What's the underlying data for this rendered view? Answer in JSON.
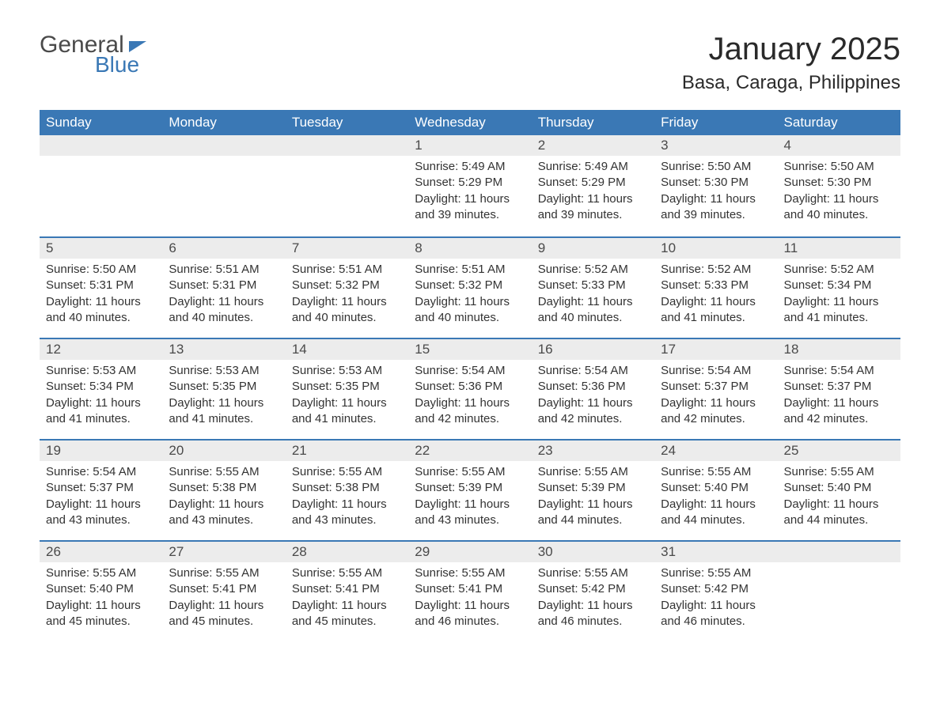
{
  "logo": {
    "word1": "General",
    "word2": "Blue"
  },
  "title": "January 2025",
  "location": "Basa, Caraga, Philippines",
  "day_headers": [
    "Sunday",
    "Monday",
    "Tuesday",
    "Wednesday",
    "Thursday",
    "Friday",
    "Saturday"
  ],
  "colors": {
    "header_bg": "#3a78b5",
    "header_text": "#ffffff",
    "stripe_bg": "#ececec",
    "stripe_border": "#3a78b5",
    "body_text": "#333333",
    "logo_gray": "#4a4a4a",
    "logo_blue": "#3a78b5",
    "background": "#ffffff"
  },
  "typography": {
    "font_family": "Arial, Helvetica, sans-serif",
    "month_title_size_pt": 30,
    "location_size_pt": 18,
    "day_header_size_pt": 13,
    "day_num_size_pt": 13,
    "body_size_pt": 11
  },
  "weeks": [
    [
      null,
      null,
      null,
      {
        "num": "1",
        "sunrise": "Sunrise: 5:49 AM",
        "sunset": "Sunset: 5:29 PM",
        "daylight": "Daylight: 11 hours and 39 minutes."
      },
      {
        "num": "2",
        "sunrise": "Sunrise: 5:49 AM",
        "sunset": "Sunset: 5:29 PM",
        "daylight": "Daylight: 11 hours and 39 minutes."
      },
      {
        "num": "3",
        "sunrise": "Sunrise: 5:50 AM",
        "sunset": "Sunset: 5:30 PM",
        "daylight": "Daylight: 11 hours and 39 minutes."
      },
      {
        "num": "4",
        "sunrise": "Sunrise: 5:50 AM",
        "sunset": "Sunset: 5:30 PM",
        "daylight": "Daylight: 11 hours and 40 minutes."
      }
    ],
    [
      {
        "num": "5",
        "sunrise": "Sunrise: 5:50 AM",
        "sunset": "Sunset: 5:31 PM",
        "daylight": "Daylight: 11 hours and 40 minutes."
      },
      {
        "num": "6",
        "sunrise": "Sunrise: 5:51 AM",
        "sunset": "Sunset: 5:31 PM",
        "daylight": "Daylight: 11 hours and 40 minutes."
      },
      {
        "num": "7",
        "sunrise": "Sunrise: 5:51 AM",
        "sunset": "Sunset: 5:32 PM",
        "daylight": "Daylight: 11 hours and 40 minutes."
      },
      {
        "num": "8",
        "sunrise": "Sunrise: 5:51 AM",
        "sunset": "Sunset: 5:32 PM",
        "daylight": "Daylight: 11 hours and 40 minutes."
      },
      {
        "num": "9",
        "sunrise": "Sunrise: 5:52 AM",
        "sunset": "Sunset: 5:33 PM",
        "daylight": "Daylight: 11 hours and 40 minutes."
      },
      {
        "num": "10",
        "sunrise": "Sunrise: 5:52 AM",
        "sunset": "Sunset: 5:33 PM",
        "daylight": "Daylight: 11 hours and 41 minutes."
      },
      {
        "num": "11",
        "sunrise": "Sunrise: 5:52 AM",
        "sunset": "Sunset: 5:34 PM",
        "daylight": "Daylight: 11 hours and 41 minutes."
      }
    ],
    [
      {
        "num": "12",
        "sunrise": "Sunrise: 5:53 AM",
        "sunset": "Sunset: 5:34 PM",
        "daylight": "Daylight: 11 hours and 41 minutes."
      },
      {
        "num": "13",
        "sunrise": "Sunrise: 5:53 AM",
        "sunset": "Sunset: 5:35 PM",
        "daylight": "Daylight: 11 hours and 41 minutes."
      },
      {
        "num": "14",
        "sunrise": "Sunrise: 5:53 AM",
        "sunset": "Sunset: 5:35 PM",
        "daylight": "Daylight: 11 hours and 41 minutes."
      },
      {
        "num": "15",
        "sunrise": "Sunrise: 5:54 AM",
        "sunset": "Sunset: 5:36 PM",
        "daylight": "Daylight: 11 hours and 42 minutes."
      },
      {
        "num": "16",
        "sunrise": "Sunrise: 5:54 AM",
        "sunset": "Sunset: 5:36 PM",
        "daylight": "Daylight: 11 hours and 42 minutes."
      },
      {
        "num": "17",
        "sunrise": "Sunrise: 5:54 AM",
        "sunset": "Sunset: 5:37 PM",
        "daylight": "Daylight: 11 hours and 42 minutes."
      },
      {
        "num": "18",
        "sunrise": "Sunrise: 5:54 AM",
        "sunset": "Sunset: 5:37 PM",
        "daylight": "Daylight: 11 hours and 42 minutes."
      }
    ],
    [
      {
        "num": "19",
        "sunrise": "Sunrise: 5:54 AM",
        "sunset": "Sunset: 5:37 PM",
        "daylight": "Daylight: 11 hours and 43 minutes."
      },
      {
        "num": "20",
        "sunrise": "Sunrise: 5:55 AM",
        "sunset": "Sunset: 5:38 PM",
        "daylight": "Daylight: 11 hours and 43 minutes."
      },
      {
        "num": "21",
        "sunrise": "Sunrise: 5:55 AM",
        "sunset": "Sunset: 5:38 PM",
        "daylight": "Daylight: 11 hours and 43 minutes."
      },
      {
        "num": "22",
        "sunrise": "Sunrise: 5:55 AM",
        "sunset": "Sunset: 5:39 PM",
        "daylight": "Daylight: 11 hours and 43 minutes."
      },
      {
        "num": "23",
        "sunrise": "Sunrise: 5:55 AM",
        "sunset": "Sunset: 5:39 PM",
        "daylight": "Daylight: 11 hours and 44 minutes."
      },
      {
        "num": "24",
        "sunrise": "Sunrise: 5:55 AM",
        "sunset": "Sunset: 5:40 PM",
        "daylight": "Daylight: 11 hours and 44 minutes."
      },
      {
        "num": "25",
        "sunrise": "Sunrise: 5:55 AM",
        "sunset": "Sunset: 5:40 PM",
        "daylight": "Daylight: 11 hours and 44 minutes."
      }
    ],
    [
      {
        "num": "26",
        "sunrise": "Sunrise: 5:55 AM",
        "sunset": "Sunset: 5:40 PM",
        "daylight": "Daylight: 11 hours and 45 minutes."
      },
      {
        "num": "27",
        "sunrise": "Sunrise: 5:55 AM",
        "sunset": "Sunset: 5:41 PM",
        "daylight": "Daylight: 11 hours and 45 minutes."
      },
      {
        "num": "28",
        "sunrise": "Sunrise: 5:55 AM",
        "sunset": "Sunset: 5:41 PM",
        "daylight": "Daylight: 11 hours and 45 minutes."
      },
      {
        "num": "29",
        "sunrise": "Sunrise: 5:55 AM",
        "sunset": "Sunset: 5:41 PM",
        "daylight": "Daylight: 11 hours and 46 minutes."
      },
      {
        "num": "30",
        "sunrise": "Sunrise: 5:55 AM",
        "sunset": "Sunset: 5:42 PM",
        "daylight": "Daylight: 11 hours and 46 minutes."
      },
      {
        "num": "31",
        "sunrise": "Sunrise: 5:55 AM",
        "sunset": "Sunset: 5:42 PM",
        "daylight": "Daylight: 11 hours and 46 minutes."
      },
      null
    ]
  ]
}
